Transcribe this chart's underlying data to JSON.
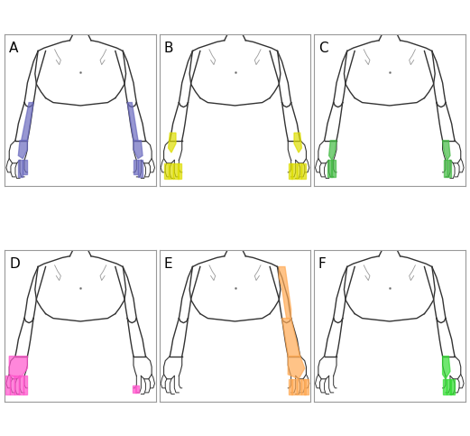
{
  "panels": [
    "A",
    "B",
    "C",
    "D",
    "E",
    "F"
  ],
  "colors": {
    "A": "#6B6BBF",
    "B": "#DDDD00",
    "C": "#44BB44",
    "D": "#FF55CC",
    "E": "#FFAA55",
    "F": "#33DD33"
  },
  "background": "#FFFFFF",
  "border_color": "#999999",
  "label_fontsize": 11,
  "body_lw": 1.0
}
